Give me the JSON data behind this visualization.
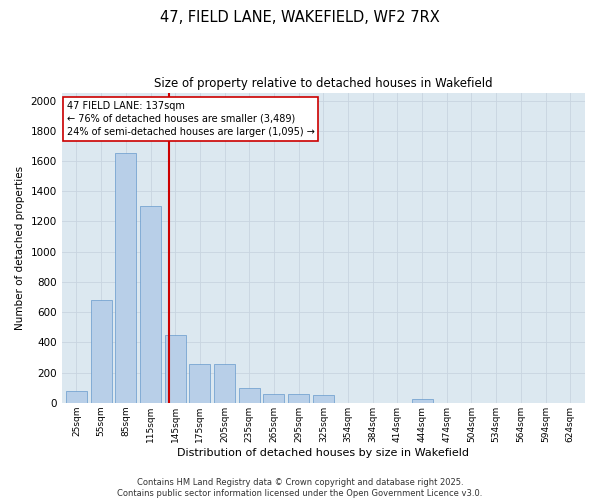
{
  "title": "47, FIELD LANE, WAKEFIELD, WF2 7RX",
  "subtitle": "Size of property relative to detached houses in Wakefield",
  "xlabel": "Distribution of detached houses by size in Wakefield",
  "ylabel": "Number of detached properties",
  "categories": [
    "25sqm",
    "55sqm",
    "85sqm",
    "115sqm",
    "145sqm",
    "175sqm",
    "205sqm",
    "235sqm",
    "265sqm",
    "295sqm",
    "325sqm",
    "354sqm",
    "384sqm",
    "414sqm",
    "444sqm",
    "474sqm",
    "504sqm",
    "534sqm",
    "564sqm",
    "594sqm",
    "624sqm"
  ],
  "values": [
    75,
    680,
    1650,
    1300,
    450,
    260,
    255,
    95,
    60,
    55,
    50,
    0,
    0,
    0,
    28,
    0,
    0,
    0,
    0,
    0,
    0
  ],
  "bar_color": "#b8cfe8",
  "bar_edge_color": "#6699cc",
  "marker_line_color": "#cc0000",
  "annotation_line1": "47 FIELD LANE: 137sqm",
  "annotation_line2": "← 76% of detached houses are smaller (3,489)",
  "annotation_line3": "24% of semi-detached houses are larger (1,095) →",
  "annotation_box_color": "#ffffff",
  "annotation_box_edge": "#cc0000",
  "grid_color": "#c8d4e0",
  "bg_color": "#dce8f0",
  "ylim": [
    0,
    2050
  ],
  "yticks": [
    0,
    200,
    400,
    600,
    800,
    1000,
    1200,
    1400,
    1600,
    1800,
    2000
  ],
  "footer_line1": "Contains HM Land Registry data © Crown copyright and database right 2025.",
  "footer_line2": "Contains public sector information licensed under the Open Government Licence v3.0."
}
